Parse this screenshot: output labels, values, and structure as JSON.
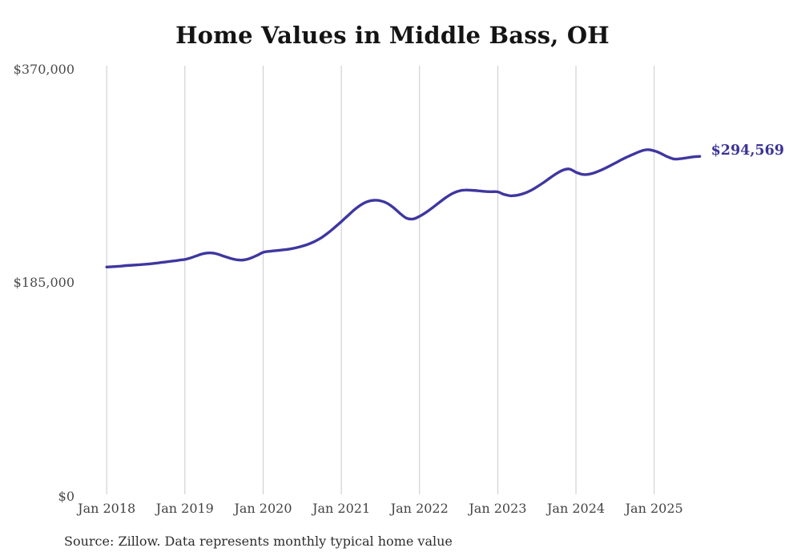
{
  "title": "Home Values in Middle Bass, OH",
  "end_label": "$294,569",
  "source_note": "Source: Zillow. Data represents monthly typical home value",
  "colors": {
    "line": "#3e37a0",
    "end_label": "#3b3494",
    "grid": "#cacaca",
    "axis_text": "#474747",
    "title_text": "#141414",
    "source_text": "#2d2d2d",
    "background": "#ffffff"
  },
  "y_axis": {
    "ticks": [
      {
        "label": "$370,000",
        "value": 370000
      },
      {
        "label": "$185,000",
        "value": 185000
      },
      {
        "label": "$0",
        "value": 0
      }
    ]
  },
  "x_axis": {
    "ticks": [
      "Jan 2018",
      "Jan 2019",
      "Jan 2020",
      "Jan 2021",
      "Jan 2022",
      "Jan 2023",
      "Jan 2024",
      "Jan 2025"
    ]
  },
  "chart_data": {
    "type": "line",
    "title": "Home Values in Middle Bass, OH",
    "series_name": "Typical home value (monthly)",
    "unit": "USD",
    "frequency": "monthly",
    "x_start": "Jan 2018",
    "x_end": "Aug 2025",
    "x_tick_labels": [
      "Jan 2018",
      "Jan 2019",
      "Jan 2020",
      "Jan 2021",
      "Jan 2022",
      "Jan 2023",
      "Jan 2024",
      "Jan 2025"
    ],
    "ylim": [
      0,
      370000
    ],
    "y_ticks": [
      0,
      185000,
      370000
    ],
    "grid": "vertical-only",
    "legend": "none",
    "last_value_label": "$294,569",
    "values": [
      198700,
      199000,
      199400,
      199900,
      200300,
      200700,
      201100,
      201600,
      202300,
      203000,
      203800,
      204500,
      205300,
      206800,
      208800,
      210500,
      210900,
      209900,
      208000,
      206200,
      204900,
      204800,
      206200,
      208600,
      211400,
      212300,
      212900,
      213500,
      214200,
      215300,
      216700,
      218600,
      221100,
      224300,
      228400,
      233100,
      238000,
      243200,
      248300,
      252500,
      255400,
      256500,
      256100,
      254000,
      250200,
      245200,
      241000,
      240300,
      242600,
      246000,
      250100,
      254500,
      258700,
      262200,
      264500,
      265400,
      265200,
      264700,
      264200,
      263900,
      263800,
      261500,
      260400,
      260900,
      262400,
      264800,
      268100,
      271800,
      275800,
      279600,
      282600,
      283600,
      280800,
      278900,
      279100,
      280700,
      283000,
      285700,
      288700,
      291700,
      294400,
      296900,
      299200,
      300400,
      299300,
      297200,
      294300,
      292300,
      292500,
      293300,
      294100,
      294569
    ]
  }
}
